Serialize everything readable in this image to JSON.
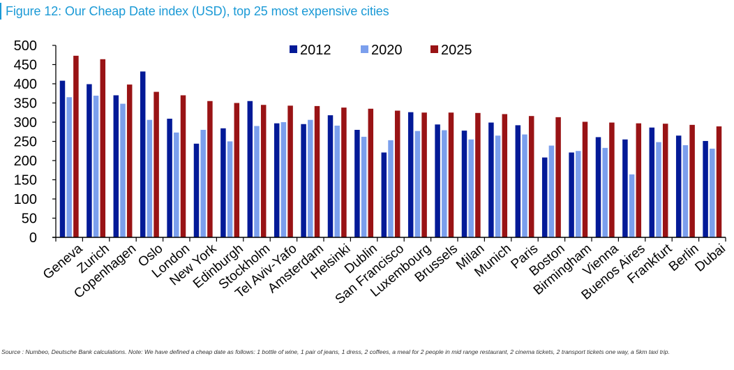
{
  "title": "Figure 12: Our Cheap Date index (USD), top 25 most expensive cities",
  "footnote": "Source : Numbeo, Deutsche Bank calculations. Note: We have defined a cheap date as follows: 1 bottle of wine, 1 pair of jeans, 1 dress, 2 coffees, a meal for 2 people in mid range restaurant, 2 cinema tickets, 2 transport tickets one way, a 5km taxi trip.",
  "chart_data": {
    "type": "bar",
    "title": "Our Cheap Date index (USD), top 25 most expensive cities",
    "xlabel": "",
    "ylabel": "",
    "ylim": [
      0,
      500
    ],
    "yticks": [
      0,
      50,
      100,
      150,
      200,
      250,
      300,
      350,
      400,
      450,
      500
    ],
    "grid": false,
    "legend_position": "top-center",
    "categories": [
      "Geneva",
      "Zurich",
      "Copenhagen",
      "Oslo",
      "London",
      "New York",
      "Edinburgh",
      "Stockholm",
      "Tel Aviv-Yafo",
      "Amsterdam",
      "Helsinki",
      "Dublin",
      "San Francisco",
      "Luxembourg",
      "Brussels",
      "Milan",
      "Munich",
      "Paris",
      "Boston",
      "Birmingham",
      "Vienna",
      "Buenos Aires",
      "Frankfurt",
      "Berlin",
      "Dubai"
    ],
    "series": [
      {
        "name": "2012",
        "color": "#031a97",
        "values": [
          408,
          399,
          370,
          432,
          309,
          244,
          284,
          355,
          297,
          295,
          318,
          280,
          221,
          326,
          294,
          278,
          299,
          292,
          208,
          221,
          261,
          255,
          286,
          265,
          251
        ]
      },
      {
        "name": "2020",
        "color": "#7b9fed",
        "values": [
          365,
          369,
          348,
          306,
          273,
          280,
          250,
          290,
          300,
          306,
          291,
          262,
          253,
          277,
          279,
          255,
          265,
          268,
          239,
          225,
          233,
          164,
          248,
          240,
          231
        ]
      },
      {
        "name": "2025",
        "color": "#991315",
        "values": [
          473,
          464,
          398,
          379,
          370,
          355,
          350,
          345,
          343,
          342,
          338,
          335,
          330,
          325,
          325,
          324,
          321,
          316,
          313,
          301,
          299,
          297,
          296,
          293,
          289
        ]
      }
    ]
  }
}
